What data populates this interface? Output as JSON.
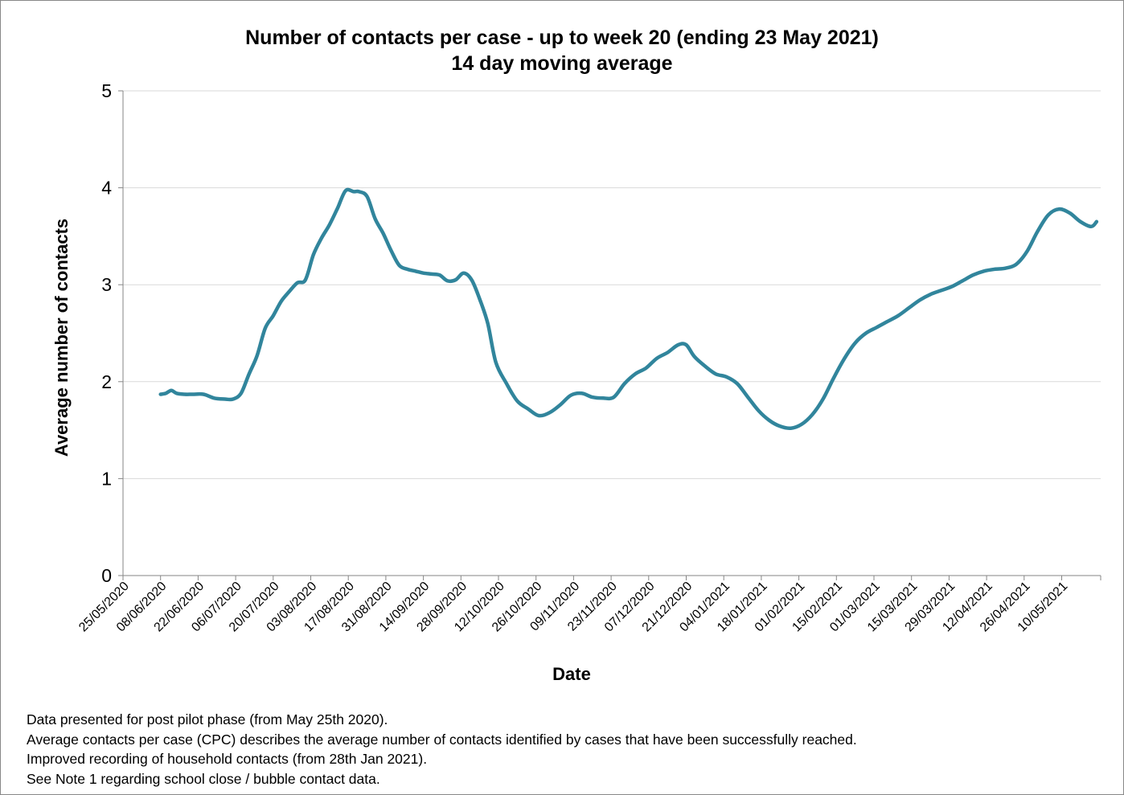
{
  "chart_data": {
    "type": "line",
    "title": "Number of contacts per case - up to week 20 (ending 23 May 2021)",
    "subtitle": "14 day moving average",
    "xlabel": "Date",
    "ylabel": "Average number of contacts",
    "ylim": [
      0,
      5
    ],
    "yticks": [
      "0",
      "1",
      "2",
      "3",
      "4",
      "5"
    ],
    "xticks": [
      "25/05/2020",
      "08/06/2020",
      "22/06/2020",
      "06/07/2020",
      "20/07/2020",
      "03/08/2020",
      "17/08/2020",
      "31/08/2020",
      "14/09/2020",
      "28/09/2020",
      "12/10/2020",
      "26/10/2020",
      "09/11/2020",
      "23/11/2020",
      "07/12/2020",
      "21/12/2020",
      "04/01/2021",
      "18/01/2021",
      "01/02/2021",
      "15/02/2021",
      "01/03/2021",
      "15/03/2021",
      "29/03/2021",
      "12/04/2021",
      "26/04/2021",
      "10/05/2021"
    ],
    "grid": true,
    "line_color": "#31859C",
    "series": [
      {
        "x": [
          "2020-06-08",
          "2020-06-10",
          "2020-06-12",
          "2020-06-14",
          "2020-06-17",
          "2020-06-20",
          "2020-06-24",
          "2020-06-28",
          "2020-07-02",
          "2020-07-05",
          "2020-07-08",
          "2020-07-11",
          "2020-07-14",
          "2020-07-17",
          "2020-07-20",
          "2020-07-23",
          "2020-07-26",
          "2020-07-29",
          "2020-08-01",
          "2020-08-04",
          "2020-08-07",
          "2020-08-10",
          "2020-08-13",
          "2020-08-16",
          "2020-08-19",
          "2020-08-21",
          "2020-08-24",
          "2020-08-27",
          "2020-08-30",
          "2020-09-02",
          "2020-09-05",
          "2020-09-08",
          "2020-09-11",
          "2020-09-14",
          "2020-09-17",
          "2020-09-20",
          "2020-09-23",
          "2020-09-26",
          "2020-09-29",
          "2020-10-02",
          "2020-10-05",
          "2020-10-08",
          "2020-10-11",
          "2020-10-15",
          "2020-10-19",
          "2020-10-23",
          "2020-10-27",
          "2020-10-31",
          "2020-11-04",
          "2020-11-08",
          "2020-11-12",
          "2020-11-16",
          "2020-11-20",
          "2020-11-24",
          "2020-11-28",
          "2020-12-02",
          "2020-12-06",
          "2020-12-10",
          "2020-12-14",
          "2020-12-18",
          "2020-12-21",
          "2020-12-24",
          "2020-12-28",
          "2021-01-01",
          "2021-01-05",
          "2021-01-09",
          "2021-01-13",
          "2021-01-17",
          "2021-01-21",
          "2021-01-25",
          "2021-01-29",
          "2021-02-02",
          "2021-02-06",
          "2021-02-10",
          "2021-02-14",
          "2021-02-18",
          "2021-02-22",
          "2021-02-26",
          "2021-03-02",
          "2021-03-06",
          "2021-03-10",
          "2021-03-14",
          "2021-03-18",
          "2021-03-22",
          "2021-03-26",
          "2021-03-30",
          "2021-04-03",
          "2021-04-07",
          "2021-04-11",
          "2021-04-15",
          "2021-04-19",
          "2021-04-23",
          "2021-04-27",
          "2021-05-01",
          "2021-05-05",
          "2021-05-09",
          "2021-05-13",
          "2021-05-17",
          "2021-05-21",
          "2021-05-23"
        ],
        "values": [
          1.87,
          1.88,
          1.91,
          1.88,
          1.87,
          1.87,
          1.87,
          1.83,
          1.82,
          1.82,
          1.88,
          2.08,
          2.27,
          2.55,
          2.68,
          2.83,
          2.93,
          3.02,
          3.05,
          3.31,
          3.48,
          3.62,
          3.79,
          3.97,
          3.96,
          3.96,
          3.91,
          3.68,
          3.53,
          3.35,
          3.2,
          3.16,
          3.14,
          3.12,
          3.11,
          3.1,
          3.04,
          3.05,
          3.12,
          3.05,
          2.85,
          2.6,
          2.2,
          1.98,
          1.8,
          1.72,
          1.65,
          1.68,
          1.76,
          1.86,
          1.88,
          1.84,
          1.83,
          1.84,
          1.98,
          2.08,
          2.14,
          2.24,
          2.3,
          2.38,
          2.38,
          2.26,
          2.16,
          2.08,
          2.05,
          1.98,
          1.84,
          1.7,
          1.6,
          1.54,
          1.52,
          1.56,
          1.66,
          1.82,
          2.04,
          2.24,
          2.4,
          2.5,
          2.56,
          2.62,
          2.68,
          2.76,
          2.84,
          2.9,
          2.94,
          2.98,
          3.04,
          3.1,
          3.14,
          3.16,
          3.17,
          3.21,
          3.34,
          3.55,
          3.72,
          3.78,
          3.74,
          3.65,
          3.6,
          3.65
        ]
      }
    ]
  },
  "notes": [
    "Data presented  for post pilot phase (from May 25th 2020).",
    "Average contacts per case (CPC) describes the average number of contacts identified by cases that have been successfully reached.",
    "Improved recording of household contacts (from 28th Jan 2021).",
    "See Note 1 regarding school close / bubble contact data."
  ]
}
